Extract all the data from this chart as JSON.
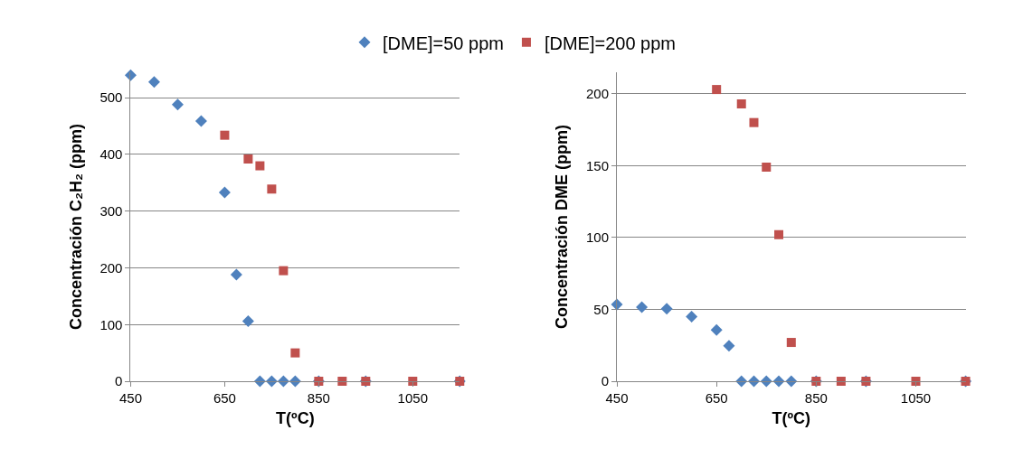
{
  "chart_data": [
    {
      "type": "scatter",
      "xlabel": "T(ºC)",
      "ylabel": "Concentración C₂H₂ (ppm)",
      "xlim": [
        450,
        1150
      ],
      "xticks": [
        450,
        650,
        850,
        1050
      ],
      "ylim": [
        0,
        545
      ],
      "yticks": [
        0,
        100,
        200,
        300,
        400,
        500
      ],
      "grid": "y",
      "legend": "top",
      "series": [
        {
          "name": "[DME]=50 ppm",
          "color": "#4f81bd",
          "marker": "diamond",
          "x": [
            450,
            500,
            550,
            600,
            650,
            675,
            700,
            725,
            750,
            775,
            800,
            850,
            950,
            1150
          ],
          "values": [
            540,
            528,
            488,
            459,
            333,
            188,
            106,
            0,
            0,
            0,
            0,
            0,
            0,
            0
          ]
        },
        {
          "name": "[DME]=200 ppm",
          "color": "#c0504d",
          "marker": "square",
          "x": [
            650,
            700,
            725,
            750,
            775,
            800,
            850,
            900,
            950,
            1050,
            1150
          ],
          "values": [
            434,
            392,
            380,
            339,
            195,
            50,
            0,
            0,
            0,
            0,
            0
          ]
        }
      ]
    },
    {
      "type": "scatter",
      "xlabel": "T(ºC)",
      "ylabel": "Concentración DME (ppm)",
      "xlim": [
        450,
        1150
      ],
      "xticks": [
        450,
        650,
        850,
        1050
      ],
      "ylim": [
        0,
        215
      ],
      "yticks": [
        0,
        50,
        100,
        150,
        200
      ],
      "grid": "y",
      "series": [
        {
          "color": "#4f81bd",
          "marker": "diamond",
          "x": [
            450,
            500,
            550,
            600,
            650,
            675,
            700,
            725,
            750,
            775,
            800,
            850,
            950,
            1150
          ],
          "values": [
            53.5,
            51.6,
            50.5,
            45,
            35.6,
            24.7,
            0,
            0,
            0,
            0,
            0,
            0,
            0,
            0
          ]
        },
        {
          "color": "#c0504d",
          "marker": "square",
          "x": [
            650,
            700,
            725,
            750,
            775,
            800,
            850,
            900,
            950,
            1050,
            1150
          ],
          "values": [
            203,
            193,
            180,
            149,
            102,
            27,
            0,
            0,
            0,
            0,
            0
          ]
        }
      ]
    }
  ]
}
